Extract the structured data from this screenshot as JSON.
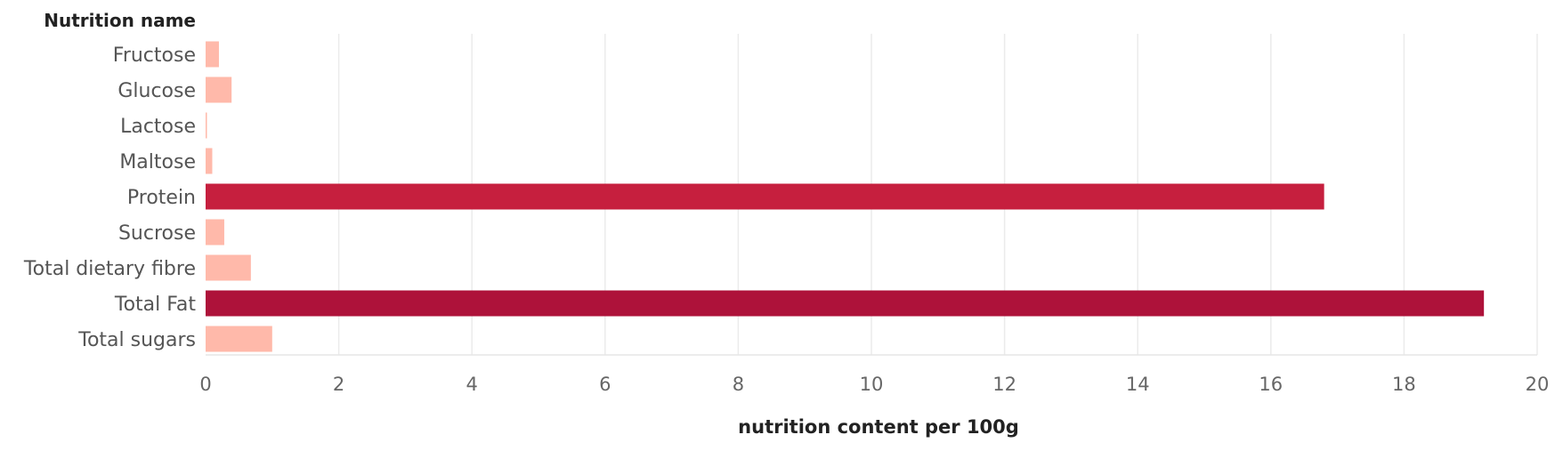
{
  "chart_data": {
    "type": "bar",
    "orientation": "horizontal",
    "row_header": "Nutrition name",
    "xlabel": "nutrition content per 100g",
    "categories": [
      "Fructose",
      "Glucose",
      "Lactose",
      "Maltose",
      "Protein",
      "Sucrose",
      "Total dietary fibre",
      "Total Fat",
      "Total sugars"
    ],
    "values": [
      0.2,
      0.39,
      0.02,
      0.1,
      16.8,
      0.28,
      0.68,
      19.2,
      1.0
    ],
    "bar_colors": [
      "#ffb9aa",
      "#ffb9aa",
      "#ffb9aa",
      "#ffb9aa",
      "#c61f3e",
      "#ffb9aa",
      "#ffb9aa",
      "#ae123a",
      "#ffb9aa"
    ],
    "xlim": [
      0,
      20
    ],
    "xticks": [
      "0",
      "2",
      "4",
      "6",
      "8",
      "10",
      "12",
      "14",
      "16",
      "18",
      "20"
    ],
    "grid": true,
    "legend": false
  }
}
